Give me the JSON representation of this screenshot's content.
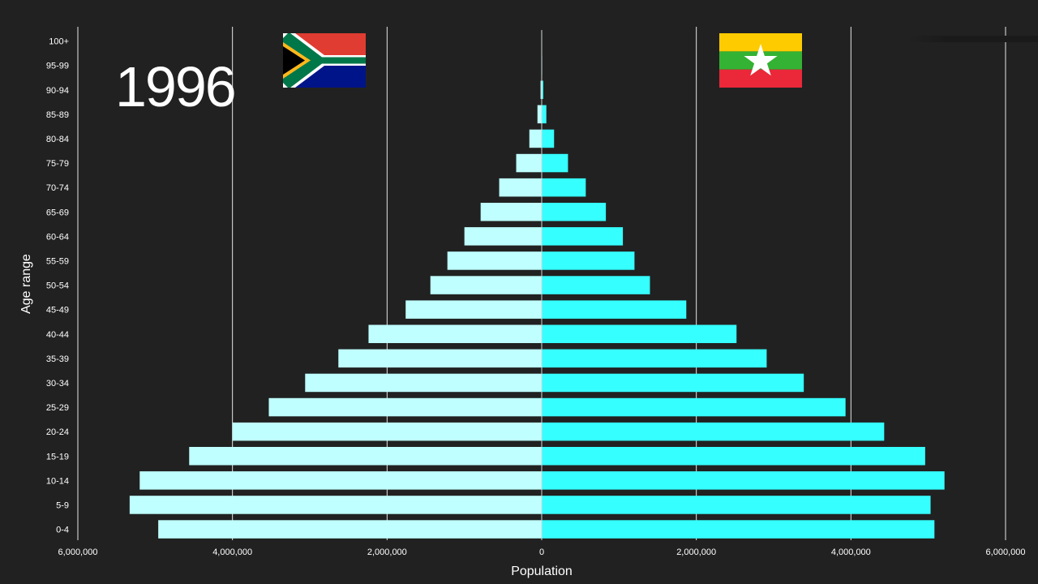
{
  "year": "1996",
  "chart_data": {
    "type": "bar",
    "orientation": "horizontal-population-pyramid",
    "categories": [
      "0-4",
      "5-9",
      "10-14",
      "15-19",
      "20-24",
      "25-29",
      "30-34",
      "35-39",
      "40-44",
      "45-49",
      "50-54",
      "55-59",
      "60-64",
      "65-69",
      "70-74",
      "75-79",
      "80-84",
      "85-89",
      "90-94",
      "95-99",
      "100+"
    ],
    "series": [
      {
        "flag": "south-africa-flag",
        "side": "left",
        "color": "#bfffff",
        "values": [
          4960000,
          5330000,
          5200000,
          4560000,
          4000000,
          3530000,
          3060000,
          2630000,
          2240000,
          1760000,
          1440000,
          1220000,
          1000000,
          790000,
          550000,
          330000,
          160000,
          55000,
          15000,
          4000,
          1000
        ]
      },
      {
        "flag": "myanmar-flag",
        "side": "right",
        "color": "#36ffff",
        "values": [
          5080000,
          5030000,
          5210000,
          4960000,
          4430000,
          3930000,
          3390000,
          2910000,
          2520000,
          1870000,
          1400000,
          1200000,
          1050000,
          830000,
          570000,
          340000,
          160000,
          60000,
          20000,
          6000,
          2000
        ]
      }
    ],
    "xlabel": "Population",
    "ylabel": "Age range",
    "xlim": [
      -6000000,
      6000000
    ],
    "x_ticks": [
      -6000000,
      -4000000,
      -2000000,
      0,
      2000000,
      4000000,
      6000000
    ],
    "x_tick_labels": [
      "6,000,000",
      "4,000,000",
      "2,000,000",
      "0",
      "2,000,000",
      "4,000,000",
      "6,000,000"
    ],
    "grid": "vertical",
    "background": "#212121",
    "grid_color": "#e6e6e6",
    "text_color": "#ffffff"
  }
}
